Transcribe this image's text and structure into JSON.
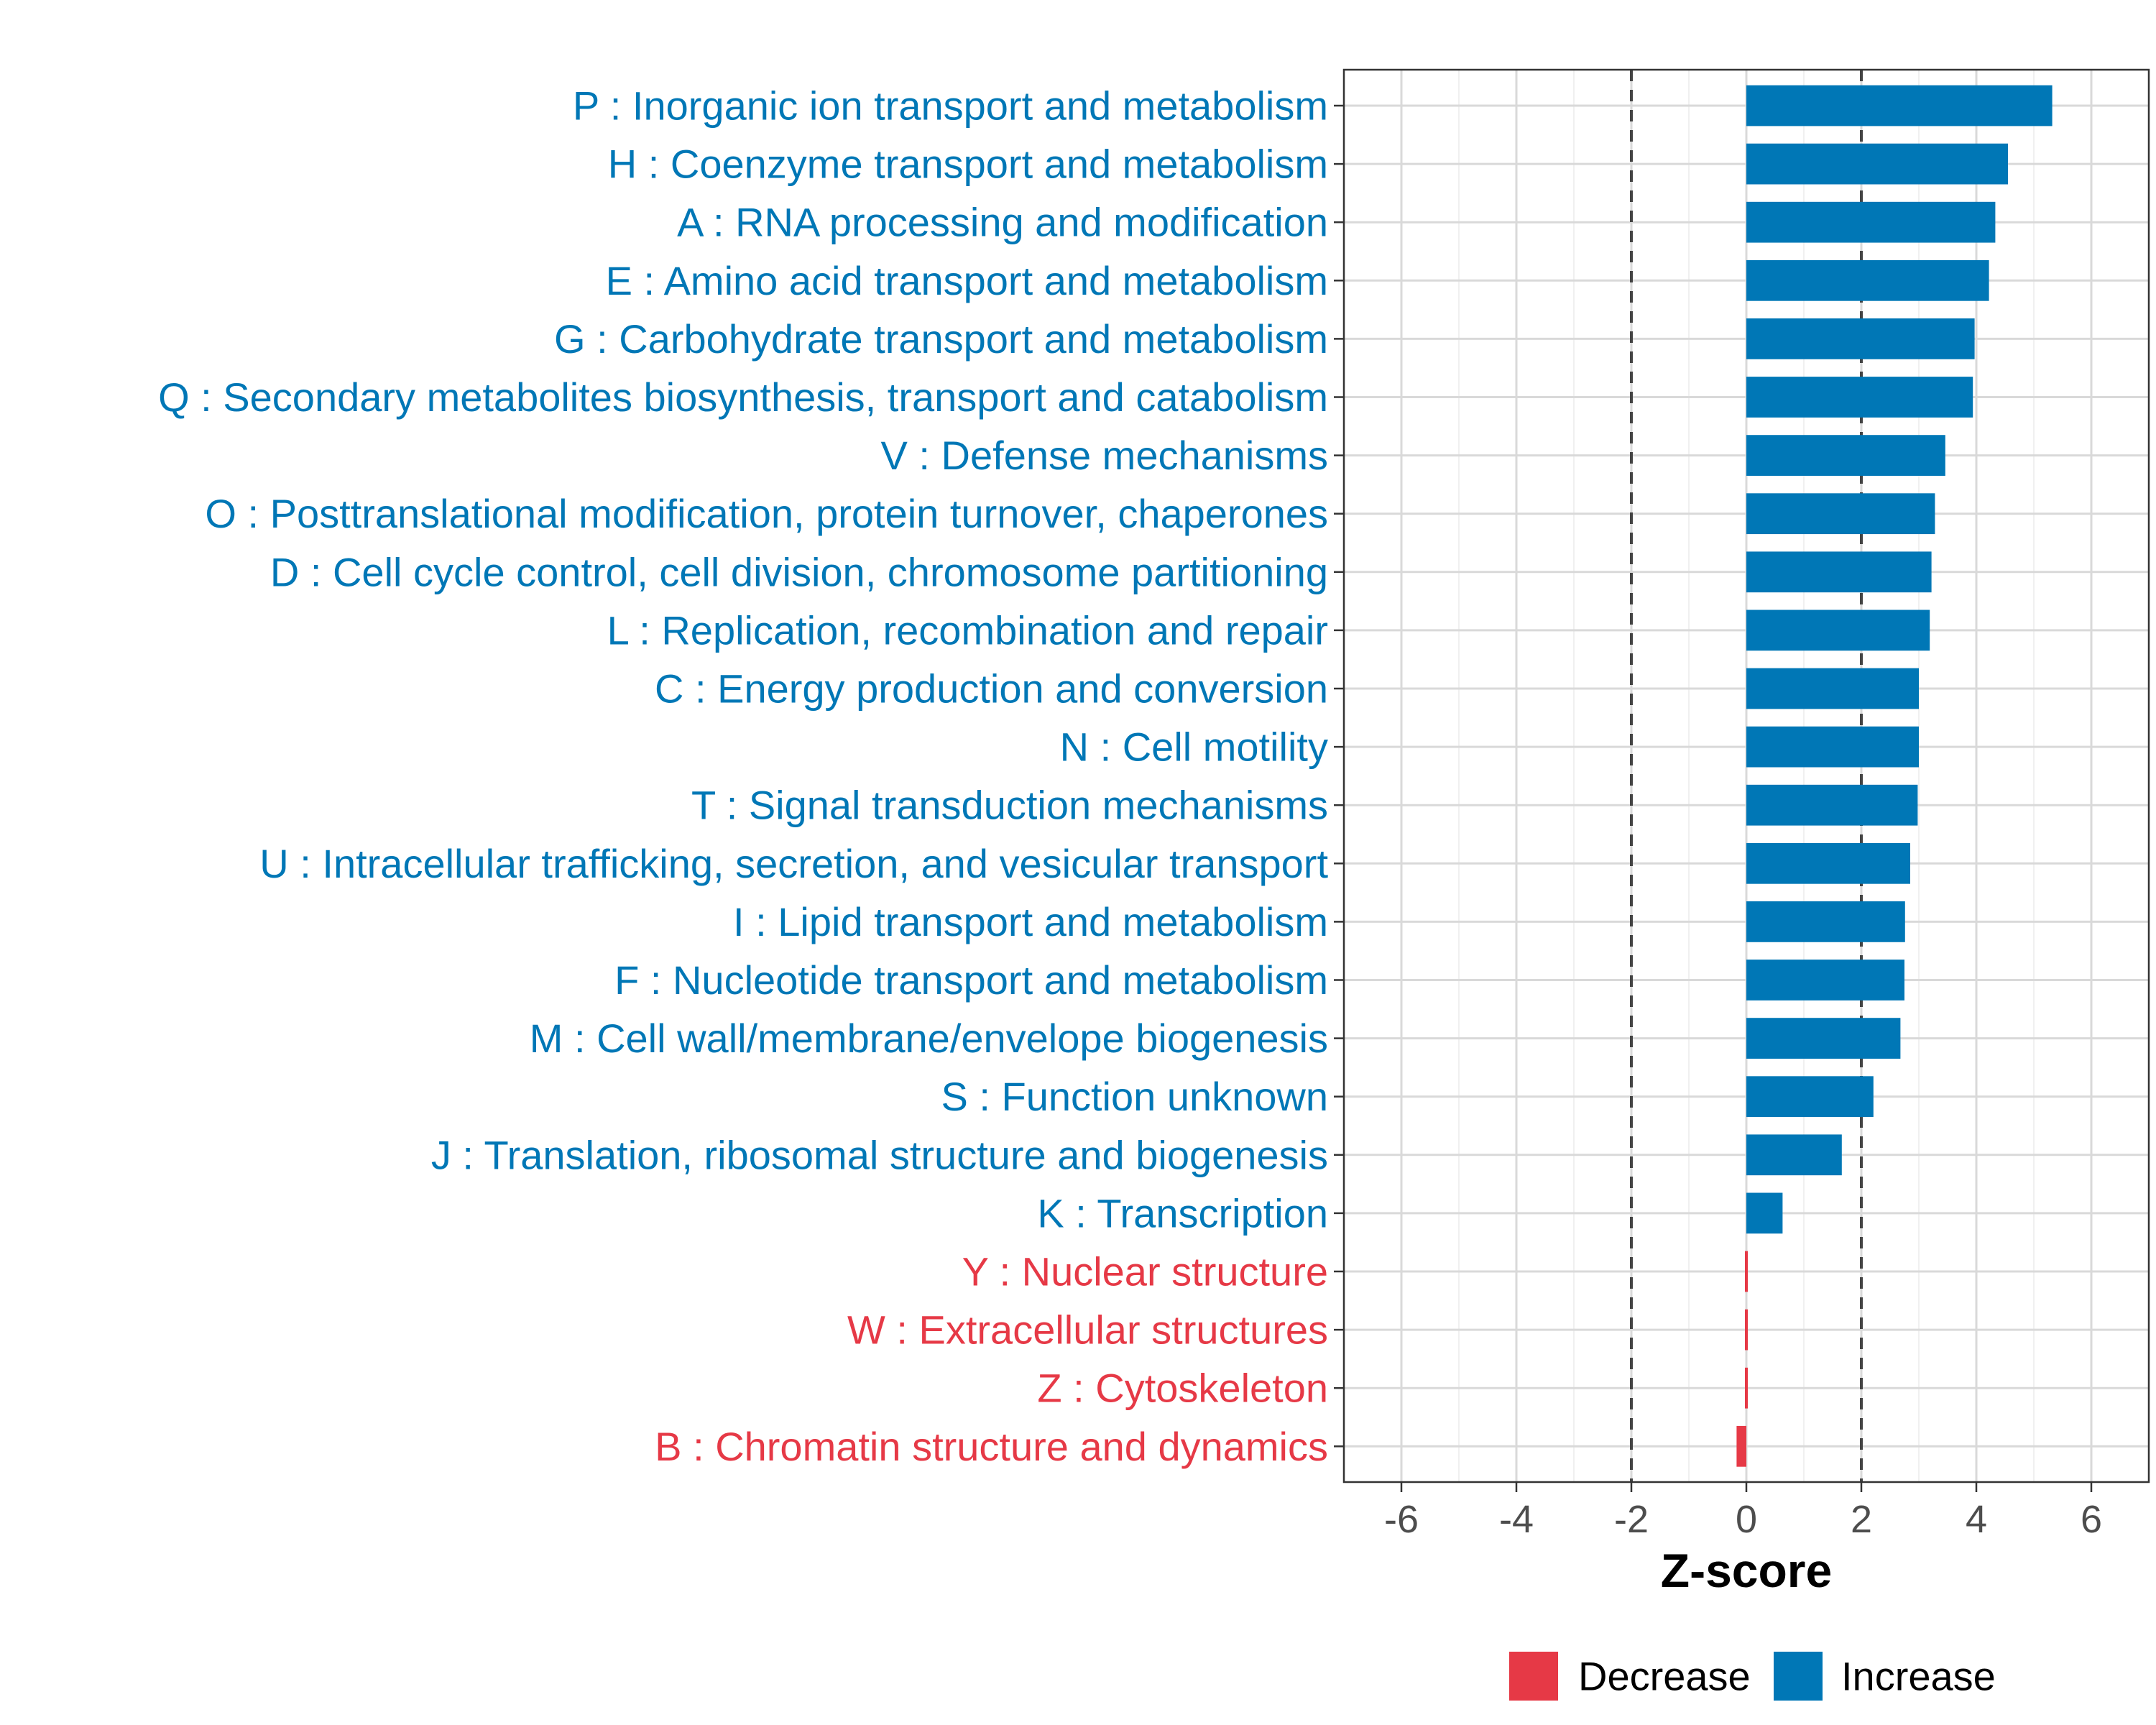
{
  "chart_data": {
    "type": "bar",
    "orientation": "horizontal",
    "xlabel": "Z-score",
    "xlim": [
      -7,
      7
    ],
    "xticks": [
      -6,
      -4,
      -2,
      0,
      2,
      4,
      6
    ],
    "xtick_labels": [
      "-6",
      "-4",
      "-2",
      "0",
      "2",
      "4",
      "6"
    ],
    "threshold_lines": [
      -2,
      2
    ],
    "grid": true,
    "colors": {
      "Increase": "#0077b6",
      "Decrease": "#e63946"
    },
    "categories": [
      "P : Inorganic ion transport and metabolism",
      "H : Coenzyme transport and metabolism",
      "A : RNA processing and modification",
      "E : Amino acid transport and metabolism",
      "G : Carbohydrate transport and metabolism",
      "Q : Secondary metabolites biosynthesis, transport and catabolism",
      "V : Defense mechanisms",
      "O : Posttranslational modification, protein turnover, chaperones",
      "D : Cell cycle control, cell division, chromosome partitioning",
      "L : Replication, recombination and repair",
      "C : Energy production and conversion",
      "N : Cell motility",
      "T : Signal transduction mechanisms",
      "U : Intracellular trafficking, secretion, and vesicular transport",
      "I : Lipid transport and metabolism",
      "F : Nucleotide transport and metabolism",
      "M : Cell wall/membrane/envelope biogenesis",
      "S : Function unknown",
      "J : Translation, ribosomal structure and biogenesis",
      "K : Transcription",
      "Y : Nuclear structure",
      "W : Extracellular structures",
      "Z : Cytoskeleton",
      "B : Chromatin structure and dynamics"
    ],
    "values": [
      5.32,
      4.55,
      4.33,
      4.22,
      3.97,
      3.94,
      3.46,
      3.28,
      3.22,
      3.19,
      3.0,
      3.0,
      2.98,
      2.85,
      2.76,
      2.75,
      2.68,
      2.21,
      1.66,
      0.63,
      -0.02,
      -0.02,
      -0.02,
      -0.17
    ],
    "groups": [
      "Increase",
      "Increase",
      "Increase",
      "Increase",
      "Increase",
      "Increase",
      "Increase",
      "Increase",
      "Increase",
      "Increase",
      "Increase",
      "Increase",
      "Increase",
      "Increase",
      "Increase",
      "Increase",
      "Increase",
      "Increase",
      "Increase",
      "Increase",
      "Decrease",
      "Decrease",
      "Decrease",
      "Decrease"
    ],
    "legend": {
      "position": "bottom",
      "entries": [
        "Decrease",
        "Increase"
      ]
    }
  }
}
